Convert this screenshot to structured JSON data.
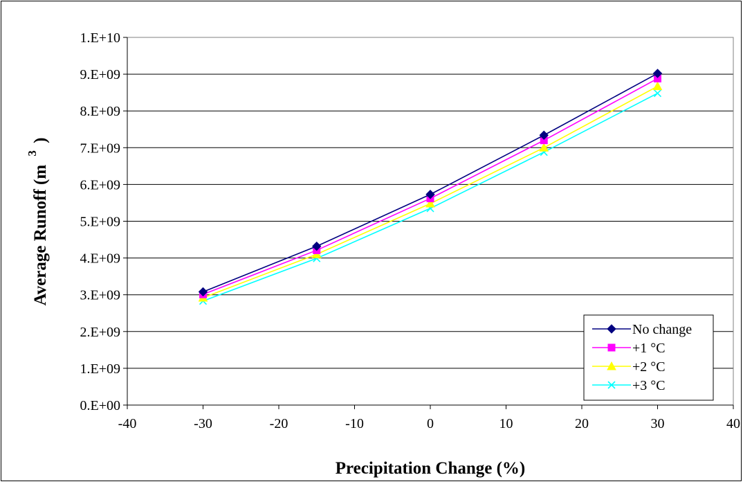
{
  "chart_data": {
    "type": "line",
    "xlabel": "Precipitation Change (%)",
    "ylabel_main": "Average Runoff (m",
    "ylabel_sup": "3",
    "ylabel_close": ")",
    "xlim": [
      -40,
      40
    ],
    "ylim": [
      0,
      10000000000
    ],
    "xticks": [
      -40,
      -30,
      -20,
      -10,
      0,
      10,
      20,
      30,
      40
    ],
    "yticks": [
      0,
      1000000000,
      2000000000,
      3000000000,
      4000000000,
      5000000000,
      6000000000,
      7000000000,
      8000000000,
      9000000000,
      10000000000
    ],
    "xtick_labels": [
      "-40",
      "-30",
      "-20",
      "-10",
      "0",
      "10",
      "20",
      "30",
      "40"
    ],
    "ytick_labels": [
      "0.E+00",
      "1.E+09",
      "2.E+09",
      "3.E+09",
      "4.E+09",
      "5.E+09",
      "6.E+09",
      "7.E+09",
      "8.E+09",
      "9.E+09",
      "1.E+10"
    ],
    "grid": "horizontal",
    "legend_position": "bottom-right",
    "x": [
      -30,
      -15,
      0,
      15,
      30
    ],
    "series": [
      {
        "name": "No change",
        "color": "#000080",
        "marker": "diamond",
        "values": [
          3080000000,
          4320000000,
          5730000000,
          7340000000,
          9020000000
        ]
      },
      {
        "name": "+1 °C",
        "color": "#ff00ff",
        "marker": "square",
        "values": [
          3010000000,
          4210000000,
          5620000000,
          7200000000,
          8880000000
        ]
      },
      {
        "name": "+2 °C",
        "color": "#ffff00",
        "marker": "triangle",
        "values": [
          2920000000,
          4100000000,
          5480000000,
          7000000000,
          8670000000
        ]
      },
      {
        "name": "+3 °C",
        "color": "#00ffff",
        "marker": "x",
        "values": [
          2830000000,
          3990000000,
          5350000000,
          6880000000,
          8480000000
        ]
      }
    ]
  }
}
